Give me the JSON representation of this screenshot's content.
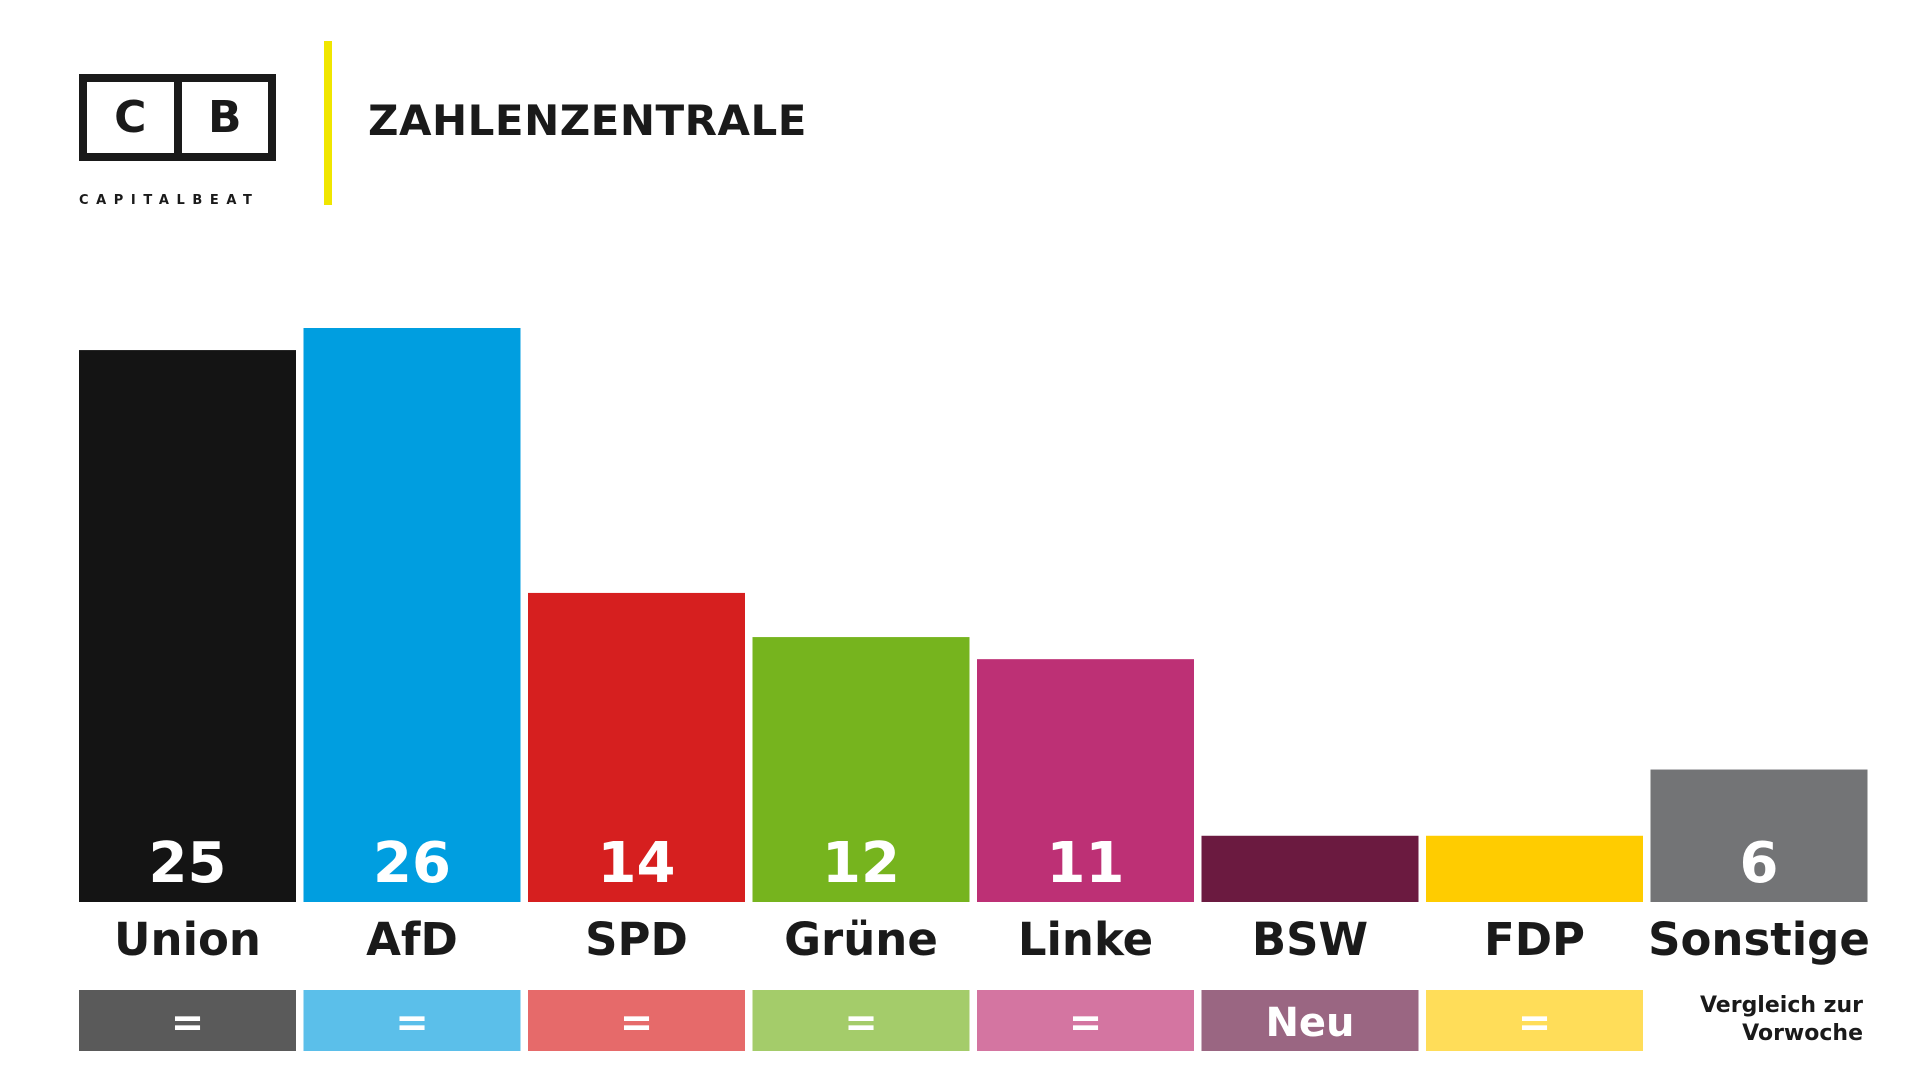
{
  "header": {
    "logo_left": "C",
    "logo_right": "B",
    "brand": "CAPITALBEAT",
    "title": "ZAHLENZENTRALE",
    "divider_color": "#f0e600"
  },
  "chart_data": {
    "type": "bar",
    "categories": [
      "Union",
      "AfD",
      "SPD",
      "Grüne",
      "Linke",
      "BSW",
      "FDP",
      "Sonstige"
    ],
    "values": [
      25,
      26,
      14,
      12,
      11,
      3,
      3,
      6
    ],
    "value_labels": [
      "25",
      "26",
      "14",
      "12",
      "11",
      "",
      "",
      "6"
    ],
    "colors": [
      "#141414",
      "#009ee0",
      "#d61f1f",
      "#76b41e",
      "#bd3075",
      "#6b1a40",
      "#ffcc00",
      "#737476"
    ],
    "changes": [
      "=",
      "=",
      "=",
      "=",
      "=",
      "Neu",
      "=",
      ""
    ],
    "change_colors": [
      "#5a5a5a",
      "#5bbfea",
      "#e66a6a",
      "#a4cc6a",
      "#d475a1",
      "#9a6682",
      "#ffdd59",
      ""
    ],
    "title": "ZAHLENZENTRALE",
    "ylim": [
      0,
      26
    ],
    "grid": false,
    "legend": "none"
  },
  "compare_note": {
    "line1": "Vergleich zur",
    "line2": "Vorwoche"
  }
}
